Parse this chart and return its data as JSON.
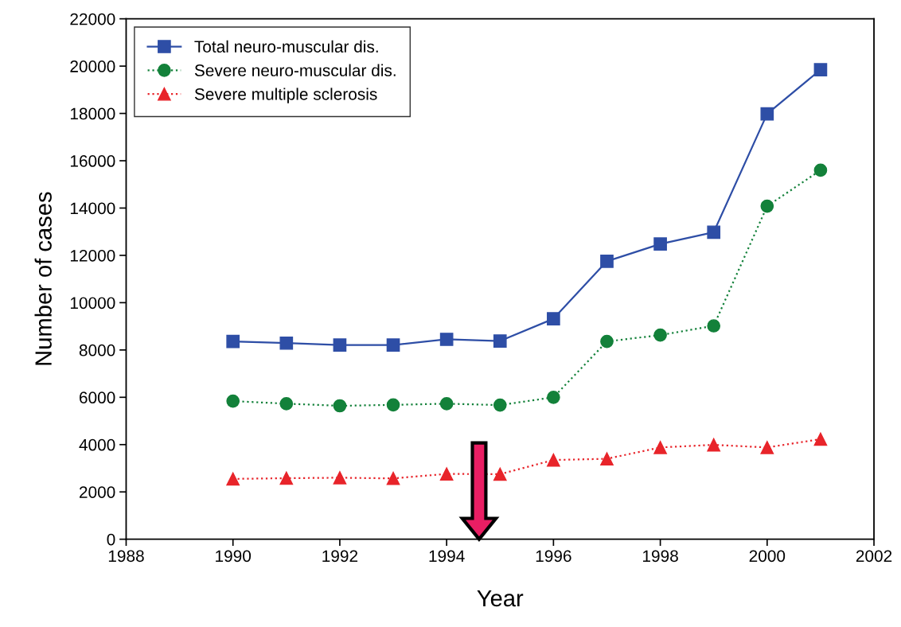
{
  "chart_data": {
    "type": "line",
    "xlabel": "Year",
    "ylabel": "Number of cases",
    "x": [
      1990,
      1991,
      1992,
      1993,
      1994,
      1995,
      1996,
      1997,
      1998,
      1999,
      2000,
      2001
    ],
    "series": [
      {
        "name": "Total neuro-muscular dis.",
        "color": "#2e4ea6",
        "marker": "square",
        "line_style": "solid",
        "values": [
          8360,
          8290,
          8210,
          8210,
          8450,
          8380,
          9320,
          11750,
          12480,
          12980,
          17980,
          19850
        ]
      },
      {
        "name": "Severe neuro-muscular dis.",
        "color": "#13813a",
        "marker": "circle",
        "line_style": "dotted",
        "values": [
          5840,
          5730,
          5640,
          5680,
          5730,
          5670,
          6000,
          8360,
          8630,
          9020,
          14080,
          15600
        ]
      },
      {
        "name": "Severe multiple sclerosis",
        "color": "#e8242a",
        "marker": "triangle",
        "line_style": "dotted",
        "values": [
          2550,
          2580,
          2600,
          2570,
          2760,
          2750,
          3350,
          3400,
          3880,
          3990,
          3880,
          4230
        ]
      }
    ],
    "xlim": [
      1988,
      2002
    ],
    "xticks": [
      1988,
      1990,
      1992,
      1994,
      1996,
      1998,
      2000,
      2002
    ],
    "ylim": [
      0,
      22000
    ],
    "yticks": [
      0,
      2000,
      4000,
      6000,
      8000,
      10000,
      12000,
      14000,
      16000,
      18000,
      20000,
      22000
    ],
    "grid": false,
    "legend": "top left"
  }
}
